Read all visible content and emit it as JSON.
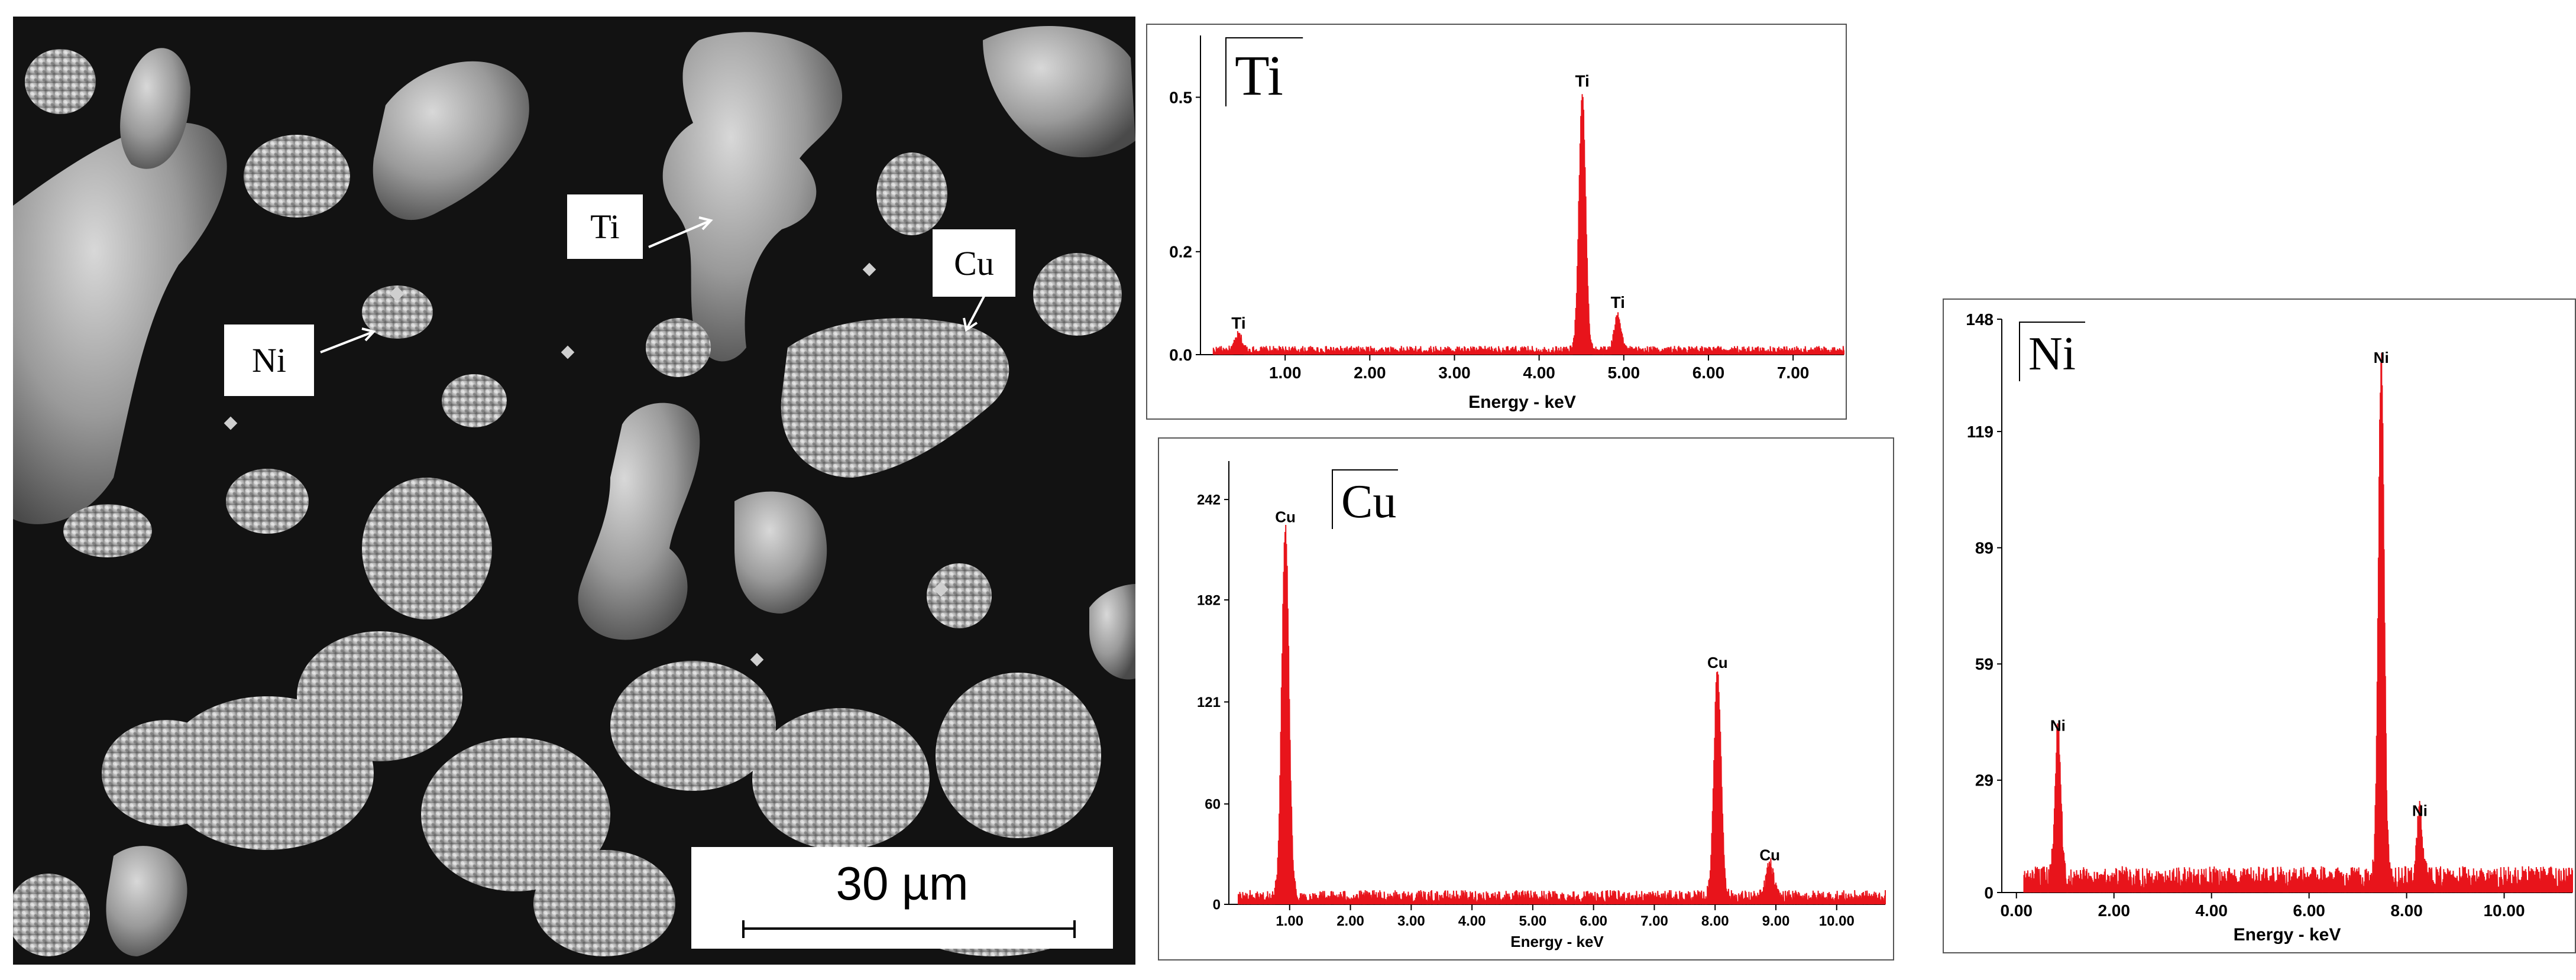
{
  "figure": {
    "sem_labels": {
      "ti": "Ti",
      "cu": "Cu",
      "ni": "Ni"
    },
    "scale_bar": "30 µm",
    "colors": {
      "spectrum": "#e8141b",
      "sem_background": "#121212"
    }
  },
  "chart_data": [
    {
      "type": "line",
      "panel_label": "Ti",
      "xlabel": "Energy - keV",
      "ylabel": "",
      "xlim": [
        0,
        7.6
      ],
      "ylim": [
        0,
        0.62
      ],
      "x_ticks": [
        {
          "v": 1,
          "label": "1.00"
        },
        {
          "v": 2,
          "label": "2.00"
        },
        {
          "v": 3,
          "label": "3.00"
        },
        {
          "v": 4,
          "label": "4.00"
        },
        {
          "v": 5,
          "label": "5.00"
        },
        {
          "v": 6,
          "label": "6.00"
        },
        {
          "v": 7,
          "label": "7.00"
        }
      ],
      "y_ticks": [
        {
          "v": 0.0,
          "label": "0.0"
        },
        {
          "v": 0.2,
          "label": "0.2"
        },
        {
          "v": 0.5,
          "label": "0.5"
        }
      ],
      "background": 0.01,
      "peaks": [
        {
          "x": 0.45,
          "y": 0.03,
          "label": "Ti"
        },
        {
          "x": 4.51,
          "y": 0.5,
          "label": "Ti"
        },
        {
          "x": 4.93,
          "y": 0.07,
          "label": "Ti"
        }
      ],
      "peak_width": 0.04
    },
    {
      "type": "line",
      "panel_label": "Cu",
      "xlabel": "Energy - keV",
      "ylabel": "",
      "xlim": [
        0,
        10.8
      ],
      "ylim": [
        0,
        265
      ],
      "x_ticks": [
        {
          "v": 1,
          "label": "1.00"
        },
        {
          "v": 2,
          "label": "2.00"
        },
        {
          "v": 3,
          "label": "3.00"
        },
        {
          "v": 4,
          "label": "4.00"
        },
        {
          "v": 5,
          "label": "5.00"
        },
        {
          "v": 6,
          "label": "6.00"
        },
        {
          "v": 7,
          "label": "7.00"
        },
        {
          "v": 8,
          "label": "8.00"
        },
        {
          "v": 9,
          "label": "9.00"
        },
        {
          "v": 10,
          "label": "10.00"
        }
      ],
      "y_ticks": [
        {
          "v": 0,
          "label": "0"
        },
        {
          "v": 60,
          "label": "60"
        },
        {
          "v": 121,
          "label": "121"
        },
        {
          "v": 182,
          "label": "182"
        },
        {
          "v": 242,
          "label": "242"
        }
      ],
      "background": 5,
      "peaks": [
        {
          "x": 0.93,
          "y": 222,
          "label": "Cu"
        },
        {
          "x": 8.04,
          "y": 135,
          "label": "Cu"
        },
        {
          "x": 8.9,
          "y": 20,
          "label": "Cu"
        }
      ],
      "peak_width": 0.06
    },
    {
      "type": "line",
      "panel_label": "Ni",
      "xlabel": "Energy - keV",
      "ylabel": "",
      "xlim": [
        -0.3,
        11.4
      ],
      "ylim": [
        0,
        148
      ],
      "x_ticks": [
        {
          "v": 0,
          "label": "0.00"
        },
        {
          "v": 2,
          "label": "2.00"
        },
        {
          "v": 4,
          "label": "4.00"
        },
        {
          "v": 6,
          "label": "6.00"
        },
        {
          "v": 8,
          "label": "8.00"
        },
        {
          "v": 10,
          "label": "10.00"
        }
      ],
      "y_ticks": [
        {
          "v": 0,
          "label": "0"
        },
        {
          "v": 29,
          "label": "29"
        },
        {
          "v": 59,
          "label": "59"
        },
        {
          "v": 89,
          "label": "89"
        },
        {
          "v": 119,
          "label": "119"
        },
        {
          "v": 148,
          "label": "148"
        }
      ],
      "background": 4,
      "peaks": [
        {
          "x": 0.85,
          "y": 39,
          "label": "Ni"
        },
        {
          "x": 7.48,
          "y": 134,
          "label": "Ni"
        },
        {
          "x": 8.27,
          "y": 17,
          "label": "Ni"
        }
      ],
      "peak_width": 0.06
    }
  ]
}
